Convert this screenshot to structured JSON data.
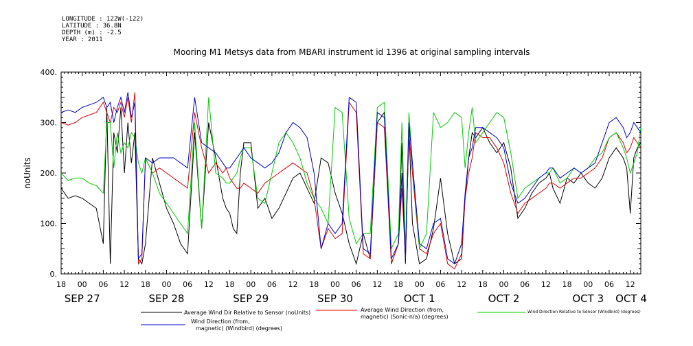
{
  "header": {
    "longitude": "LONGITUDE : 122W(-122)",
    "latitude": "LATITUDE : 36.8N",
    "depth": "DEPTH (m) : -2.5",
    "year": "YEAR : 2011"
  },
  "colors": {
    "black": "#000000",
    "red": "#dd0000",
    "green": "#00cc00",
    "blue": "#0000cc"
  },
  "chart_data": {
    "type": "line",
    "title": "Mooring M1 Metsys data from MBARI instrument id 1396 at original sampling intervals",
    "ylabel": "noUnits",
    "ylim": [
      0,
      400
    ],
    "yticks": [
      0,
      100,
      200,
      300,
      400
    ],
    "xlim_hours": [
      -6,
      159
    ],
    "x_unit": "hours since SEP 27 00:00, 2011",
    "hour_ticks": [
      {
        "h": -6,
        "label": "18"
      },
      {
        "h": 0,
        "label": "00"
      },
      {
        "h": 6,
        "label": "06"
      },
      {
        "h": 12,
        "label": "12"
      },
      {
        "h": 18,
        "label": "18"
      },
      {
        "h": 24,
        "label": "00"
      },
      {
        "h": 30,
        "label": "06"
      },
      {
        "h": 36,
        "label": "12"
      },
      {
        "h": 42,
        "label": "18"
      },
      {
        "h": 48,
        "label": "00"
      },
      {
        "h": 54,
        "label": "06"
      },
      {
        "h": 60,
        "label": "12"
      },
      {
        "h": 66,
        "label": "18"
      },
      {
        "h": 72,
        "label": "00"
      },
      {
        "h": 78,
        "label": "06"
      },
      {
        "h": 84,
        "label": "12"
      },
      {
        "h": 90,
        "label": "18"
      },
      {
        "h": 96,
        "label": "00"
      },
      {
        "h": 102,
        "label": "06"
      },
      {
        "h": 108,
        "label": "12"
      },
      {
        "h": 114,
        "label": "18"
      },
      {
        "h": 120,
        "label": "00"
      },
      {
        "h": 126,
        "label": "06"
      },
      {
        "h": 132,
        "label": "12"
      },
      {
        "h": 138,
        "label": "18"
      },
      {
        "h": 144,
        "label": "00"
      },
      {
        "h": 150,
        "label": "06"
      },
      {
        "h": 156,
        "label": "12"
      }
    ],
    "date_labels": [
      {
        "h": 0,
        "label": "SEP 27"
      },
      {
        "h": 24,
        "label": "SEP 28"
      },
      {
        "h": 48,
        "label": "SEP 29"
      },
      {
        "h": 72,
        "label": "SEP 30"
      },
      {
        "h": 96,
        "label": "OCT  1"
      },
      {
        "h": 120,
        "label": "OCT  2"
      },
      {
        "h": 144,
        "label": "OCT  3"
      },
      {
        "h": 168,
        "label": "OCT  4"
      }
    ],
    "series": [
      {
        "name": "Average Wind Dir Relative to Sensor (noUnits)",
        "color": "#000000",
        "x": [
          -6,
          -4,
          -2,
          0,
          2,
          4,
          6,
          7,
          8,
          9,
          10,
          11,
          12,
          13,
          14,
          15,
          16,
          17,
          18,
          20,
          22,
          24,
          26,
          28,
          30,
          32,
          34,
          36,
          38,
          40,
          41,
          42,
          43,
          44,
          45,
          46,
          48,
          50,
          52,
          54,
          56,
          58,
          60,
          62,
          64,
          66,
          68,
          70,
          72,
          74,
          76,
          78,
          80,
          82,
          84,
          86,
          88,
          90,
          91,
          92,
          93,
          94,
          96,
          98,
          100,
          102,
          104,
          106,
          108,
          109,
          110,
          111,
          112,
          114,
          116,
          118,
          120,
          122,
          124,
          126,
          128,
          130,
          132,
          133,
          134,
          136,
          138,
          140,
          142,
          144,
          146,
          148,
          150,
          152,
          154,
          155,
          156,
          157,
          158,
          159
        ],
        "y": [
          170,
          150,
          155,
          150,
          140,
          130,
          60,
          330,
          20,
          280,
          240,
          330,
          200,
          300,
          220,
          280,
          30,
          20,
          60,
          230,
          180,
          130,
          100,
          60,
          40,
          280,
          90,
          300,
          230,
          150,
          130,
          120,
          90,
          80,
          200,
          260,
          260,
          130,
          150,
          110,
          130,
          160,
          190,
          200,
          170,
          140,
          230,
          220,
          160,
          120,
          60,
          20,
          80,
          30,
          300,
          320,
          20,
          60,
          260,
          20,
          290,
          100,
          20,
          30,
          90,
          190,
          80,
          20,
          30,
          150,
          230,
          280,
          270,
          290,
          260,
          240,
          260,
          210,
          110,
          130,
          160,
          180,
          190,
          200,
          170,
          140,
          190,
          180,
          200,
          180,
          170,
          190,
          230,
          250,
          230,
          210,
          120,
          230,
          250,
          260
        ]
      },
      {
        "name": "Average Wind Direction (from, magnetic) (Sonic-n/a) (degrees)",
        "color": "#dd0000",
        "x": [
          -6,
          -4,
          -2,
          0,
          2,
          4,
          6,
          7,
          8,
          9,
          10,
          11,
          12,
          13,
          14,
          15,
          16,
          17,
          18,
          20,
          22,
          24,
          26,
          28,
          30,
          32,
          34,
          36,
          38,
          40,
          41,
          42,
          43,
          44,
          45,
          46,
          48,
          50,
          52,
          54,
          56,
          58,
          60,
          62,
          64,
          66,
          68,
          70,
          72,
          74,
          76,
          78,
          80,
          82,
          84,
          86,
          88,
          90,
          91,
          92,
          93,
          94,
          96,
          98,
          100,
          102,
          104,
          106,
          108,
          109,
          110,
          111,
          112,
          114,
          116,
          118,
          120,
          122,
          124,
          126,
          128,
          130,
          132,
          133,
          134,
          136,
          138,
          140,
          142,
          144,
          146,
          148,
          150,
          152,
          154,
          155,
          156,
          157,
          158,
          159
        ],
        "y": [
          300,
          295,
          300,
          310,
          315,
          320,
          340,
          320,
          300,
          330,
          320,
          340,
          310,
          350,
          300,
          360,
          20,
          30,
          230,
          200,
          210,
          200,
          190,
          180,
          170,
          320,
          250,
          200,
          220,
          200,
          210,
          190,
          180,
          170,
          170,
          180,
          170,
          160,
          180,
          190,
          200,
          210,
          220,
          210,
          200,
          150,
          50,
          90,
          70,
          80,
          340,
          320,
          40,
          30,
          300,
          290,
          20,
          60,
          170,
          30,
          280,
          200,
          50,
          40,
          80,
          100,
          20,
          10,
          40,
          150,
          200,
          230,
          280,
          270,
          270,
          250,
          220,
          160,
          120,
          140,
          150,
          160,
          170,
          180,
          180,
          170,
          180,
          190,
          190,
          200,
          210,
          230,
          270,
          280,
          260,
          240,
          250,
          270,
          260,
          250
        ]
      },
      {
        "name": "Wind Direction Relative to Sensor (Windbird) (degrees)",
        "color": "#00cc00",
        "x": [
          -6,
          -4,
          -2,
          0,
          2,
          4,
          6,
          7,
          8,
          9,
          10,
          11,
          12,
          13,
          14,
          15,
          16,
          17,
          18,
          20,
          22,
          24,
          26,
          28,
          30,
          32,
          34,
          36,
          38,
          40,
          41,
          42,
          43,
          44,
          45,
          46,
          48,
          50,
          52,
          54,
          56,
          58,
          60,
          62,
          64,
          66,
          68,
          70,
          72,
          74,
          76,
          78,
          80,
          82,
          84,
          86,
          88,
          90,
          91,
          92,
          93,
          94,
          96,
          98,
          100,
          102,
          104,
          106,
          108,
          109,
          110,
          111,
          112,
          114,
          116,
          118,
          120,
          122,
          124,
          126,
          128,
          130,
          132,
          133,
          134,
          136,
          138,
          140,
          142,
          144,
          146,
          148,
          150,
          152,
          154,
          155,
          156,
          157,
          158,
          159
        ],
        "y": [
          200,
          185,
          190,
          190,
          180,
          175,
          160,
          300,
          300,
          210,
          280,
          240,
          260,
          250,
          280,
          270,
          220,
          200,
          230,
          200,
          160,
          140,
          120,
          100,
          80,
          300,
          90,
          350,
          200,
          190,
          180,
          180,
          190,
          200,
          230,
          250,
          250,
          150,
          140,
          200,
          260,
          280,
          260,
          230,
          180,
          150,
          130,
          100,
          330,
          320,
          110,
          60,
          80,
          80,
          330,
          340,
          50,
          80,
          300,
          50,
          320,
          220,
          50,
          80,
          320,
          290,
          300,
          320,
          310,
          210,
          280,
          330,
          260,
          280,
          300,
          320,
          310,
          240,
          150,
          170,
          180,
          190,
          200,
          200,
          210,
          180,
          190,
          210,
          200,
          210,
          230,
          240,
          270,
          280,
          250,
          230,
          200,
          220,
          240,
          290
        ]
      },
      {
        "name": "Wind Direction (from, magnetic) (Windbird) (degrees)",
        "color": "#0000cc",
        "x": [
          -6,
          -4,
          -2,
          0,
          2,
          4,
          6,
          7,
          8,
          9,
          10,
          11,
          12,
          13,
          14,
          15,
          16,
          17,
          18,
          20,
          22,
          24,
          26,
          28,
          30,
          32,
          34,
          36,
          38,
          40,
          41,
          42,
          43,
          44,
          45,
          46,
          48,
          50,
          52,
          54,
          56,
          58,
          60,
          62,
          64,
          66,
          68,
          70,
          72,
          74,
          76,
          78,
          80,
          82,
          84,
          86,
          88,
          90,
          91,
          92,
          93,
          94,
          96,
          98,
          100,
          102,
          104,
          106,
          108,
          109,
          110,
          111,
          112,
          114,
          116,
          118,
          120,
          122,
          124,
          126,
          128,
          130,
          132,
          133,
          134,
          136,
          138,
          140,
          142,
          144,
          146,
          148,
          150,
          152,
          154,
          155,
          156,
          157,
          158,
          159
        ],
        "y": [
          320,
          325,
          320,
          330,
          335,
          340,
          350,
          330,
          340,
          300,
          330,
          350,
          320,
          360,
          310,
          340,
          30,
          40,
          230,
          220,
          230,
          230,
          230,
          220,
          210,
          350,
          260,
          250,
          240,
          220,
          210,
          210,
          220,
          230,
          240,
          250,
          230,
          220,
          210,
          220,
          240,
          280,
          300,
          290,
          270,
          200,
          50,
          100,
          80,
          100,
          350,
          340,
          50,
          40,
          320,
          310,
          30,
          60,
          200,
          30,
          300,
          220,
          60,
          50,
          100,
          110,
          30,
          20,
          60,
          160,
          230,
          250,
          290,
          290,
          280,
          270,
          250,
          180,
          140,
          150,
          170,
          190,
          200,
          210,
          210,
          190,
          200,
          210,
          200,
          210,
          220,
          260,
          300,
          310,
          290,
          270,
          280,
          300,
          290,
          280
        ]
      }
    ]
  }
}
